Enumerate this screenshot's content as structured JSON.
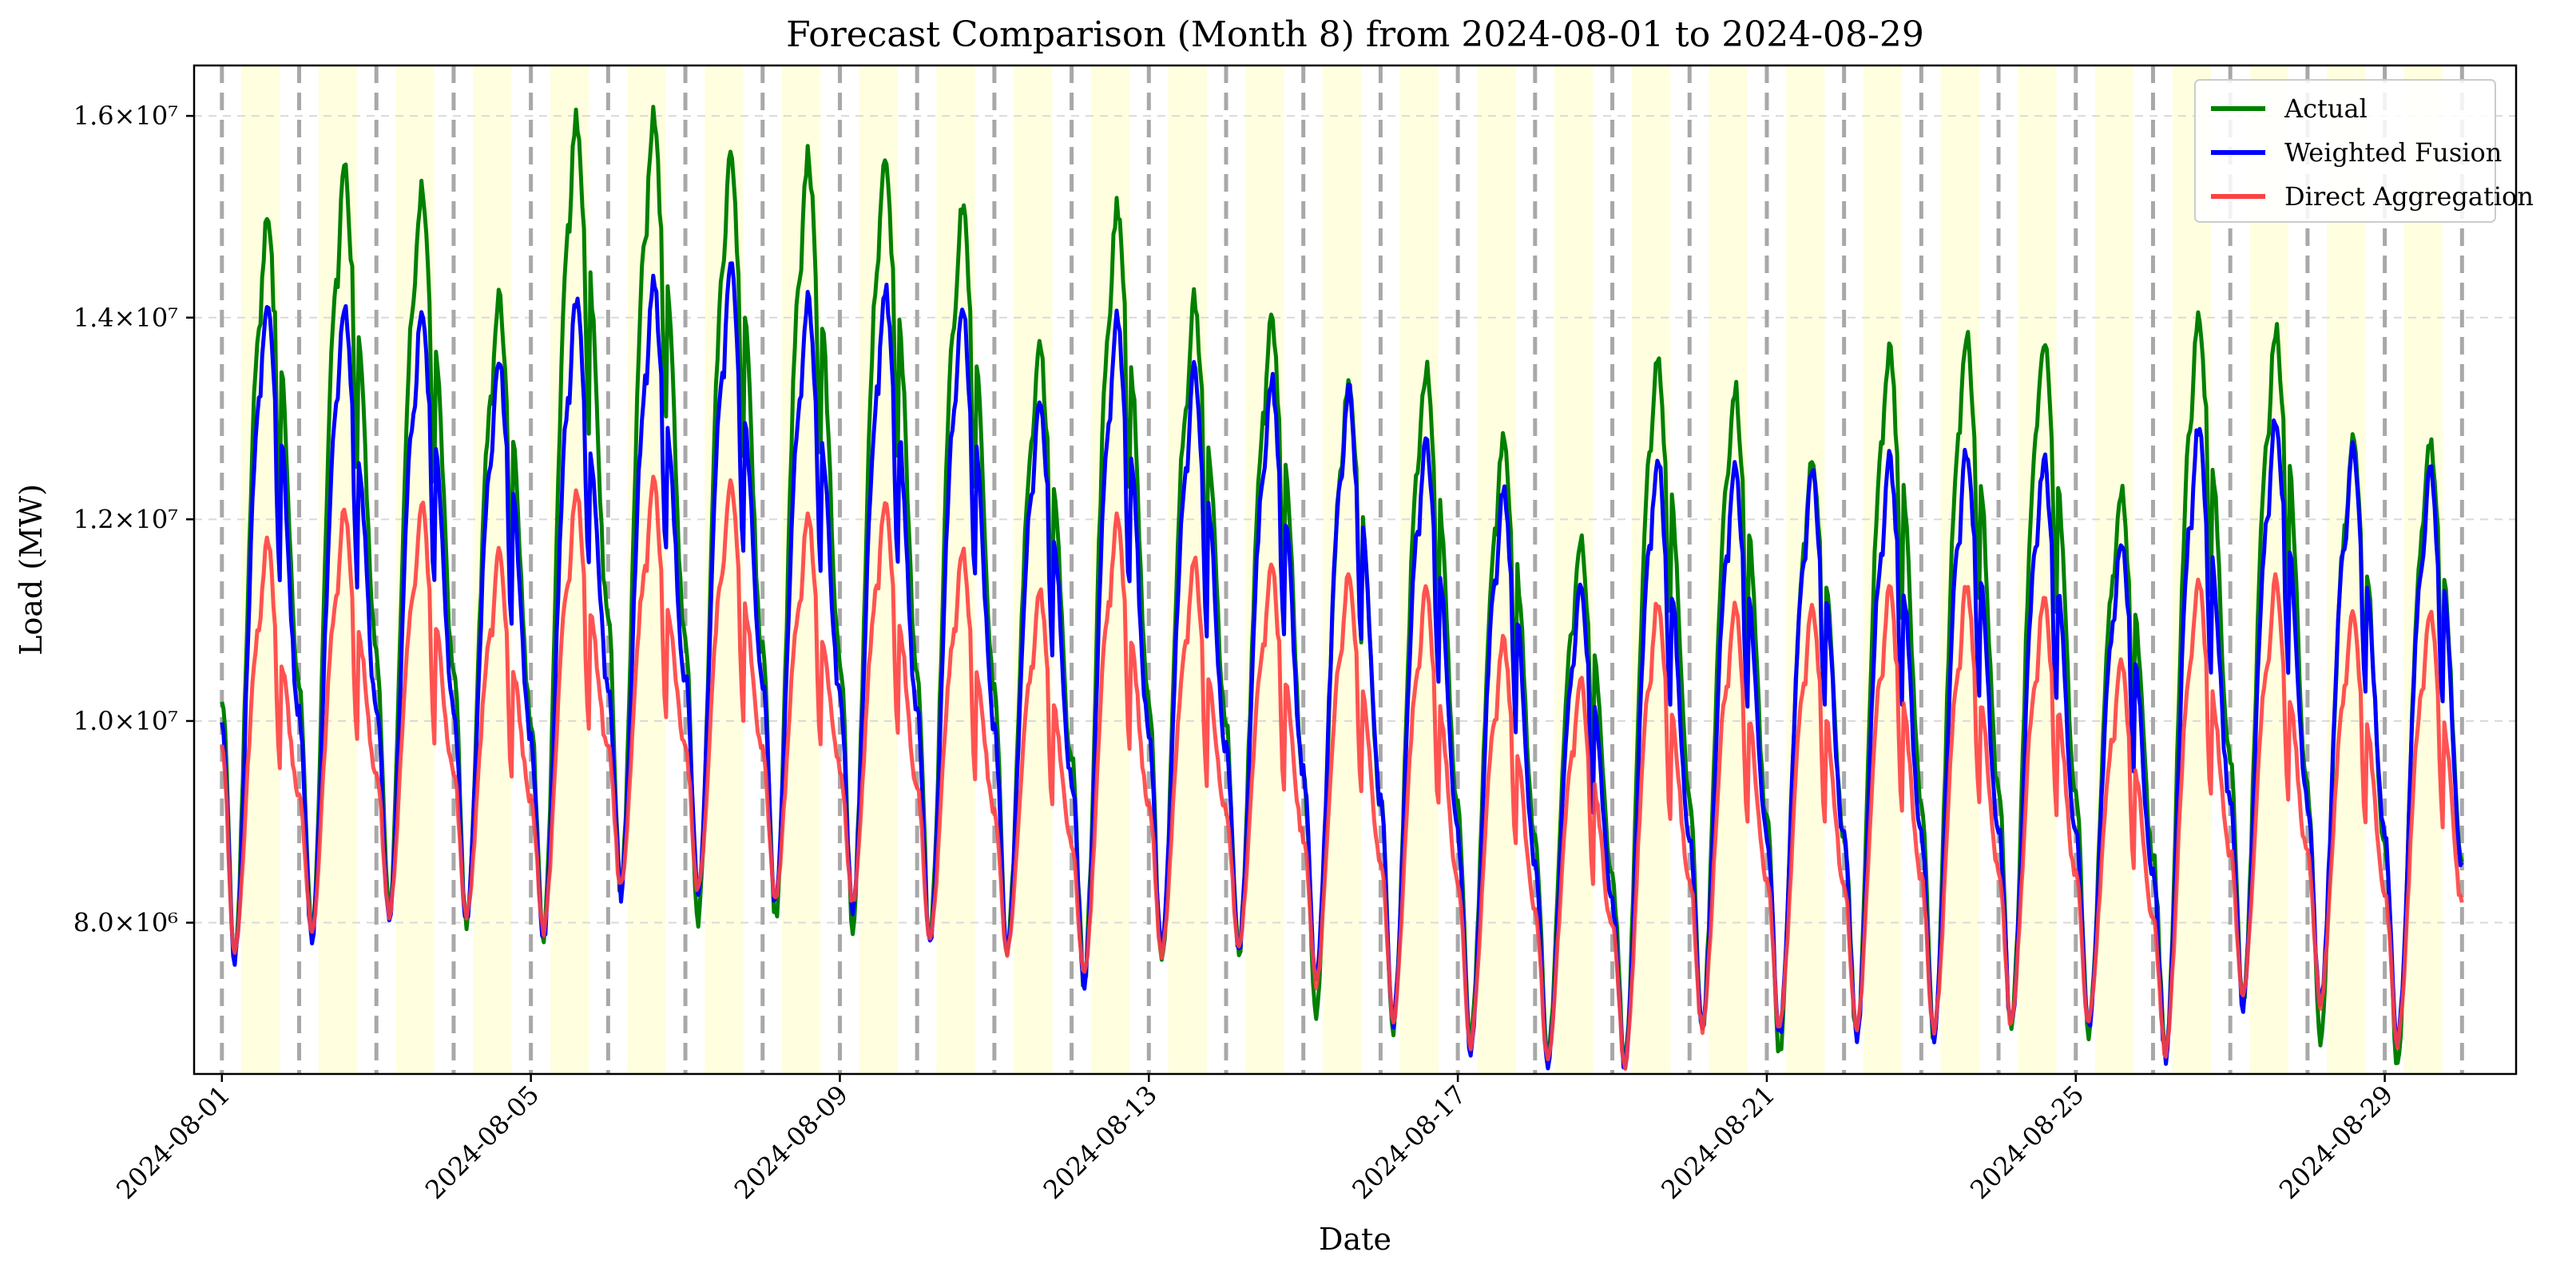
{
  "chart_data": {
    "type": "line",
    "title": "Forecast Comparison (Month 8) from 2024-08-01 to 2024-08-29",
    "xlabel": "Date",
    "ylabel": "Load (MW)",
    "x_range_days": [
      0,
      29
    ],
    "x_start_date": "2024-08-01",
    "ylim": [
      6500000,
      16500000
    ],
    "y_ticks": [
      {
        "value": 8000000,
        "label": "8.0×10⁶"
      },
      {
        "value": 10000000,
        "label": "1.0×10⁷"
      },
      {
        "value": 12000000,
        "label": "1.2×10⁷"
      },
      {
        "value": 14000000,
        "label": "1.4×10⁷"
      },
      {
        "value": 16000000,
        "label": "1.6×10⁷"
      }
    ],
    "x_ticks": [
      {
        "day": 0,
        "label": "2024-08-01"
      },
      {
        "day": 4,
        "label": "2024-08-05"
      },
      {
        "day": 8,
        "label": "2024-08-09"
      },
      {
        "day": 12,
        "label": "2024-08-13"
      },
      {
        "day": 16,
        "label": "2024-08-17"
      },
      {
        "day": 20,
        "label": "2024-08-21"
      },
      {
        "day": 24,
        "label": "2024-08-25"
      },
      {
        "day": 28,
        "label": "2024-08-29"
      }
    ],
    "grid": "y-dashed",
    "legend_position": "top-right",
    "day_separator_days": [
      0,
      1,
      2,
      3,
      4,
      5,
      6,
      7,
      8,
      9,
      10,
      11,
      12,
      13,
      14,
      15,
      16,
      17,
      18,
      19,
      20,
      21,
      22,
      23,
      24,
      25,
      26,
      27,
      28,
      29
    ],
    "daytime_band_hours": [
      6,
      18
    ],
    "daily_min_hour": 4,
    "daily_peak_hours": [
      12,
      18
    ],
    "series": [
      {
        "name": "Actual",
        "color": "#008000",
        "start_value": 10300000,
        "end_value": 8600000,
        "daily_min": [
          7700000,
          7900000,
          8100000,
          8000000,
          7800000,
          8300000,
          7950000,
          8050000,
          8000000,
          7800000,
          7700000,
          7400000,
          7600000,
          7700000,
          7100000,
          6950000,
          6800000,
          6700000,
          6600000,
          6950000,
          6700000,
          6850000,
          6800000,
          6900000,
          6900000,
          6700000,
          7200000,
          6850000,
          6600000
        ],
        "daily_peak": [
          15000000,
          15500000,
          15300000,
          14200000,
          16000000,
          16000000,
          15600000,
          15600000,
          15600000,
          15100000,
          13700000,
          15100000,
          14200000,
          14000000,
          13400000,
          13500000,
          12800000,
          11800000,
          13600000,
          13300000,
          12600000,
          13700000,
          13800000,
          13800000,
          12300000,
          14000000,
          13900000,
          12800000,
          12800000
        ]
      },
      {
        "name": "Weighted Fusion",
        "color": "#0000ff",
        "start_value": 10000000,
        "end_value": 8600000,
        "daily_min": [
          7600000,
          7850000,
          8050000,
          8000000,
          7800000,
          8300000,
          8300000,
          8200000,
          8150000,
          7800000,
          7700000,
          7400000,
          7700000,
          7700000,
          7400000,
          7000000,
          6750000,
          6600000,
          6550000,
          6900000,
          6900000,
          6850000,
          6850000,
          6950000,
          6950000,
          6650000,
          7200000,
          7150000,
          6800000
        ],
        "daily_peak": [
          14200000,
          14100000,
          14100000,
          13600000,
          14200000,
          14400000,
          14500000,
          14200000,
          14300000,
          14100000,
          13200000,
          14000000,
          13500000,
          13400000,
          13300000,
          12800000,
          12300000,
          11300000,
          12600000,
          12500000,
          12500000,
          12600000,
          12700000,
          12600000,
          11800000,
          12900000,
          13000000,
          12700000,
          12500000
        ]
      },
      {
        "name": "Direct Aggregation",
        "color": "#ff4040",
        "start_value": 9800000,
        "end_value": 8200000,
        "daily_min": [
          7700000,
          7900000,
          8100000,
          8050000,
          7900000,
          8350000,
          8300000,
          8250000,
          8200000,
          7850000,
          7700000,
          7450000,
          7700000,
          7750000,
          7400000,
          7050000,
          6800000,
          6650000,
          6600000,
          6950000,
          6950000,
          6900000,
          6900000,
          7000000,
          7000000,
          6700000,
          7250000,
          7200000,
          6800000
        ],
        "daily_peak": [
          11800000,
          12100000,
          12150000,
          11700000,
          12300000,
          12400000,
          12400000,
          12050000,
          12200000,
          11700000,
          11300000,
          12000000,
          11600000,
          11550000,
          11450000,
          11300000,
          10800000,
          10400000,
          11200000,
          11150000,
          11150000,
          11300000,
          11350000,
          11250000,
          10600000,
          11400000,
          11400000,
          11100000,
          11100000
        ]
      }
    ]
  }
}
